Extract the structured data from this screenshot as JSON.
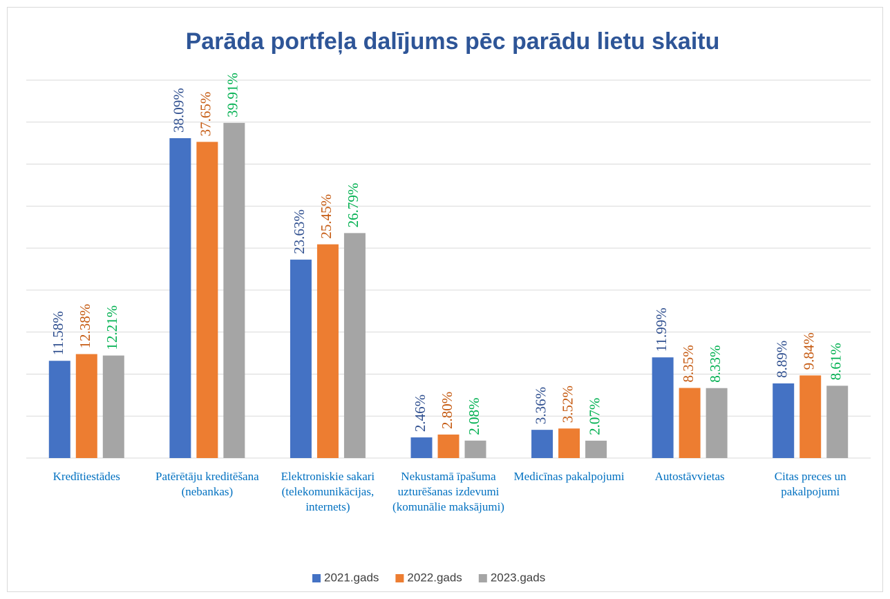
{
  "chart_data": {
    "type": "bar",
    "title": "Parāda portfeļa dalījums pēc parādu lietu skaitu",
    "categories": [
      "Kredītiestādes",
      "Patērētāju kreditēšana (nebankas)",
      "Elektroniskie sakari (telekomunikācijas, internets)",
      "Nekustamā īpašuma uzturēšanas izdevumi (komunālie maksājumi)",
      "Medicīnas pakalpojumi",
      "Autostāvvietas",
      "Citas preces un pakalpojumi"
    ],
    "series": [
      {
        "name": "2021.gads",
        "color": "#4472c4",
        "label_color": "#2f4f8f",
        "values": [
          11.58,
          38.09,
          23.63,
          2.46,
          3.36,
          11.99,
          8.89
        ],
        "value_labels": [
          "11.58%",
          "38.09%",
          "23.63%",
          "2.46%",
          "3.36%",
          "11.99%",
          "8.89%"
        ]
      },
      {
        "name": "2022.gads",
        "color": "#ed7d31",
        "label_color": "#c55a11",
        "values": [
          12.38,
          37.65,
          25.45,
          2.8,
          3.52,
          8.35,
          9.84
        ],
        "value_labels": [
          "12.38%",
          "37.65%",
          "25.45%",
          "2.80%",
          "3.52%",
          "8.35%",
          "9.84%"
        ]
      },
      {
        "name": "2023.gads",
        "color": "#a5a5a5",
        "label_color": "#00b050",
        "values": [
          12.21,
          39.91,
          26.79,
          2.08,
          2.07,
          8.33,
          8.61
        ],
        "value_labels": [
          "12.21%",
          "39.91%",
          "26.79%",
          "2.08%",
          "2.07%",
          "8.33%",
          "8.61%"
        ]
      }
    ],
    "ylim": [
      0,
      45
    ],
    "yticks": [
      0,
      5,
      10,
      15,
      20,
      25,
      30,
      35,
      40,
      45
    ],
    "grid": true,
    "legend": "bottom"
  }
}
